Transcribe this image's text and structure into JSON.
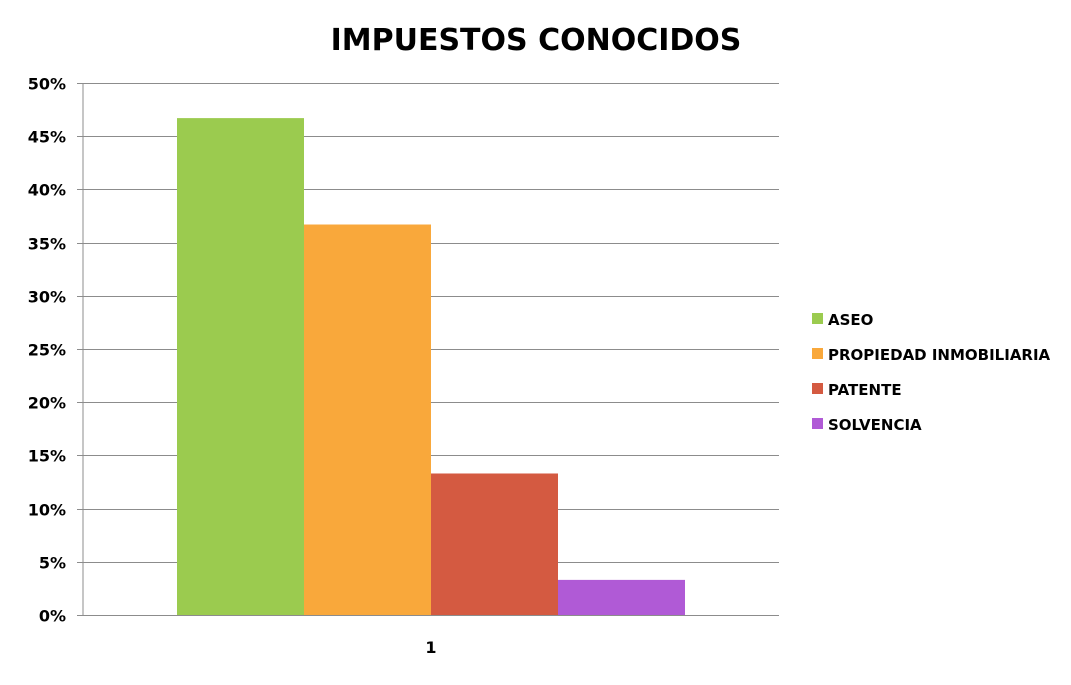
{
  "chart_data": {
    "type": "bar",
    "title": "IMPUESTOS CONOCIDOS",
    "xlabel": "",
    "ylabel": "",
    "categories": [
      "1"
    ],
    "series": [
      {
        "name": "ASEO",
        "values": [
          0.467
        ],
        "color": "#9BCB4F"
      },
      {
        "name": "PROPIEDAD INMOBILIARIA",
        "values": [
          0.367
        ],
        "color": "#F9A83B"
      },
      {
        "name": "PATENTE",
        "values": [
          0.133
        ],
        "color": "#D45A41"
      },
      {
        "name": "SOLVENCIA",
        "values": [
          0.033
        ],
        "color": "#B05AD6"
      }
    ],
    "ylim": [
      0,
      0.5
    ],
    "yticks": [
      {
        "value": 0.0,
        "label": "0%"
      },
      {
        "value": 0.05,
        "label": "5%"
      },
      {
        "value": 0.1,
        "label": "10%"
      },
      {
        "value": 0.15,
        "label": "15%"
      },
      {
        "value": 0.2,
        "label": "20%"
      },
      {
        "value": 0.25,
        "label": "25%"
      },
      {
        "value": 0.3,
        "label": "30%"
      },
      {
        "value": 0.35,
        "label": "35%"
      },
      {
        "value": 0.4,
        "label": "40%"
      },
      {
        "value": 0.45,
        "label": "45%"
      },
      {
        "value": 0.5,
        "label": "50%"
      }
    ],
    "grid": true,
    "legend_position": "right",
    "gridline_color": "#8C8C8C"
  }
}
